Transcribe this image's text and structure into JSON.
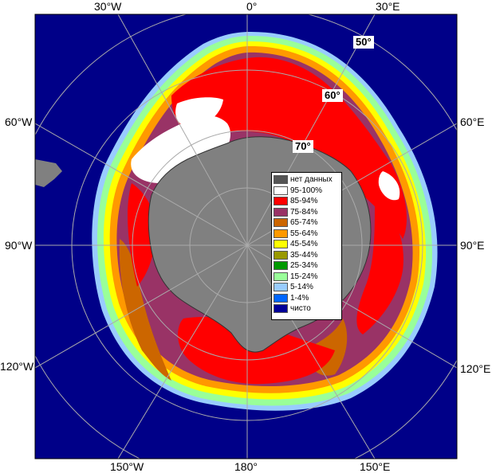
{
  "labels": {
    "top": [
      "30°W",
      "0°",
      "30°E"
    ],
    "left": [
      "60°W",
      "90°W",
      "120°W"
    ],
    "right": [
      "60°E",
      "90°E",
      "120°E"
    ],
    "bottom": [
      "150°W",
      "180°",
      "150°E"
    ],
    "latitudes": [
      "50°",
      "60°",
      "70°"
    ]
  },
  "legend": {
    "items": [
      {
        "label": "нет данных",
        "color": "#555555"
      },
      {
        "label": "95-100%",
        "color": "#ffffff"
      },
      {
        "label": "85-94%",
        "color": "#ff0000"
      },
      {
        "label": "75-84%",
        "color": "#993366"
      },
      {
        "label": "65-74%",
        "color": "#cc6600"
      },
      {
        "label": "55-64%",
        "color": "#ff9900"
      },
      {
        "label": "45-54%",
        "color": "#ffff00"
      },
      {
        "label": "35-44%",
        "color": "#999900"
      },
      {
        "label": "25-34%",
        "color": "#009900"
      },
      {
        "label": "15-24%",
        "color": "#99ff99"
      },
      {
        "label": "5-14%",
        "color": "#99ccff"
      },
      {
        "label": "1-4%",
        "color": "#0066ff"
      },
      {
        "label": "чисто",
        "color": "#000099"
      }
    ]
  },
  "colors": {
    "ocean": "#000088",
    "land": "#808080",
    "grid": "#aaaaaa",
    "coast": "#333333"
  }
}
